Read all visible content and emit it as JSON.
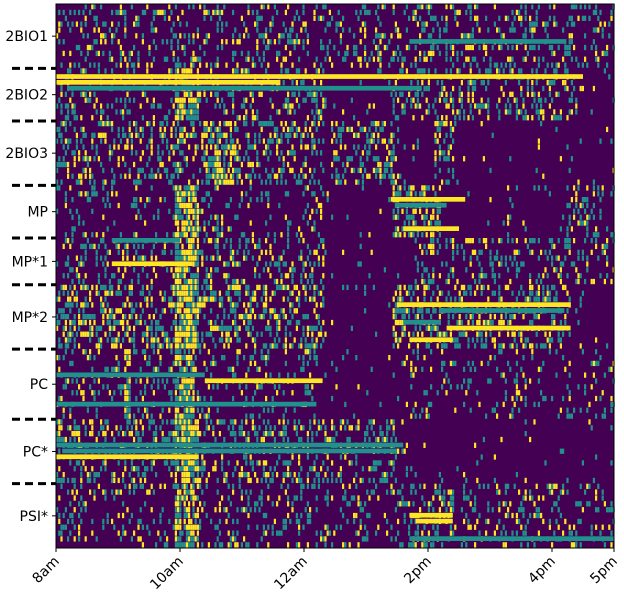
{
  "chart_data": {
    "type": "heatmap",
    "title": "",
    "xlabel": "",
    "ylabel": "",
    "x_ticks": [
      "8am",
      "10am",
      "12am",
      "2pm",
      "4pm",
      "5pm"
    ],
    "x_tick_hours": [
      8,
      10,
      12,
      14,
      16,
      17
    ],
    "xlim_hours": [
      8,
      17
    ],
    "groups": [
      {
        "label": "2BIO1",
        "start": 0,
        "end": 11
      },
      {
        "label": "2BIO2",
        "start": 11,
        "end": 20
      },
      {
        "label": "2BIO3",
        "start": 20,
        "end": 31
      },
      {
        "label": "MP",
        "start": 31,
        "end": 40
      },
      {
        "label": "MP*1",
        "start": 40,
        "end": 48
      },
      {
        "label": "MP*2",
        "start": 48,
        "end": 59
      },
      {
        "label": "PC",
        "start": 59,
        "end": 71
      },
      {
        "label": "PC*",
        "start": 71,
        "end": 82
      },
      {
        "label": "PSI*",
        "start": 82,
        "end": 93
      }
    ],
    "n_rows": 93,
    "color_levels": [
      "#440154",
      "#21918c",
      "#fde725"
    ],
    "grid": false,
    "legend": "none"
  }
}
